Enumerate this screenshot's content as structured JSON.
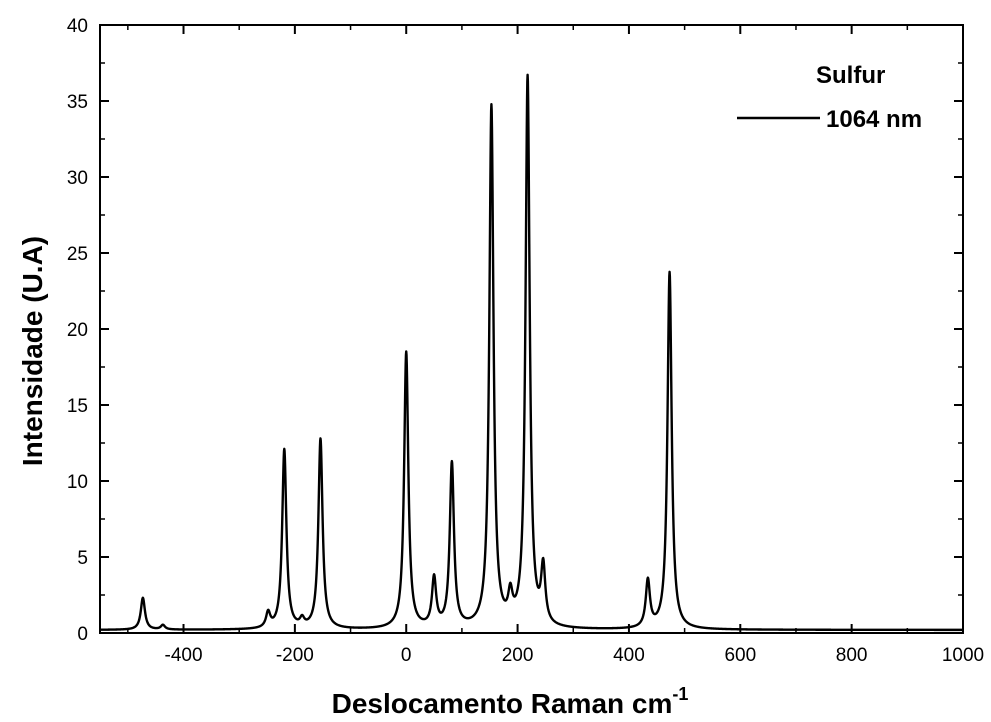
{
  "chart_data": {
    "type": "line",
    "title": "",
    "xlabel": "Deslocamento Raman cm",
    "xlabel_sup": "-1",
    "ylabel": "Intensidade (U.A)",
    "xlim": [
      -550,
      1000
    ],
    "ylim": [
      0,
      40
    ],
    "xticks": [
      -400,
      -200,
      0,
      200,
      400,
      600,
      800,
      1000
    ],
    "yticks": [
      0,
      5,
      10,
      15,
      20,
      25,
      30,
      35,
      40
    ],
    "grid": false,
    "legend": {
      "title": "Sulfur",
      "placement": "top-right"
    },
    "series": [
      {
        "name": "1064 nm",
        "color": "#000000",
        "baseline": 0.2,
        "peaks": [
          {
            "x": -473,
            "height": 2.1
          },
          {
            "x": -437,
            "height": 0.3
          },
          {
            "x": -248,
            "height": 1.0
          },
          {
            "x": -219,
            "height": 11.8
          },
          {
            "x": -187,
            "height": 0.5
          },
          {
            "x": -154,
            "height": 12.5
          },
          {
            "x": 0,
            "height": 18.2
          },
          {
            "x": 50,
            "height": 3.2
          },
          {
            "x": 82,
            "height": 10.8
          },
          {
            "x": 153,
            "height": 34.3
          },
          {
            "x": 187,
            "height": 1.7
          },
          {
            "x": 218,
            "height": 36.2
          },
          {
            "x": 246,
            "height": 3.7
          },
          {
            "x": 434,
            "height": 3.1
          },
          {
            "x": 473,
            "height": 23.5
          }
        ]
      }
    ]
  }
}
